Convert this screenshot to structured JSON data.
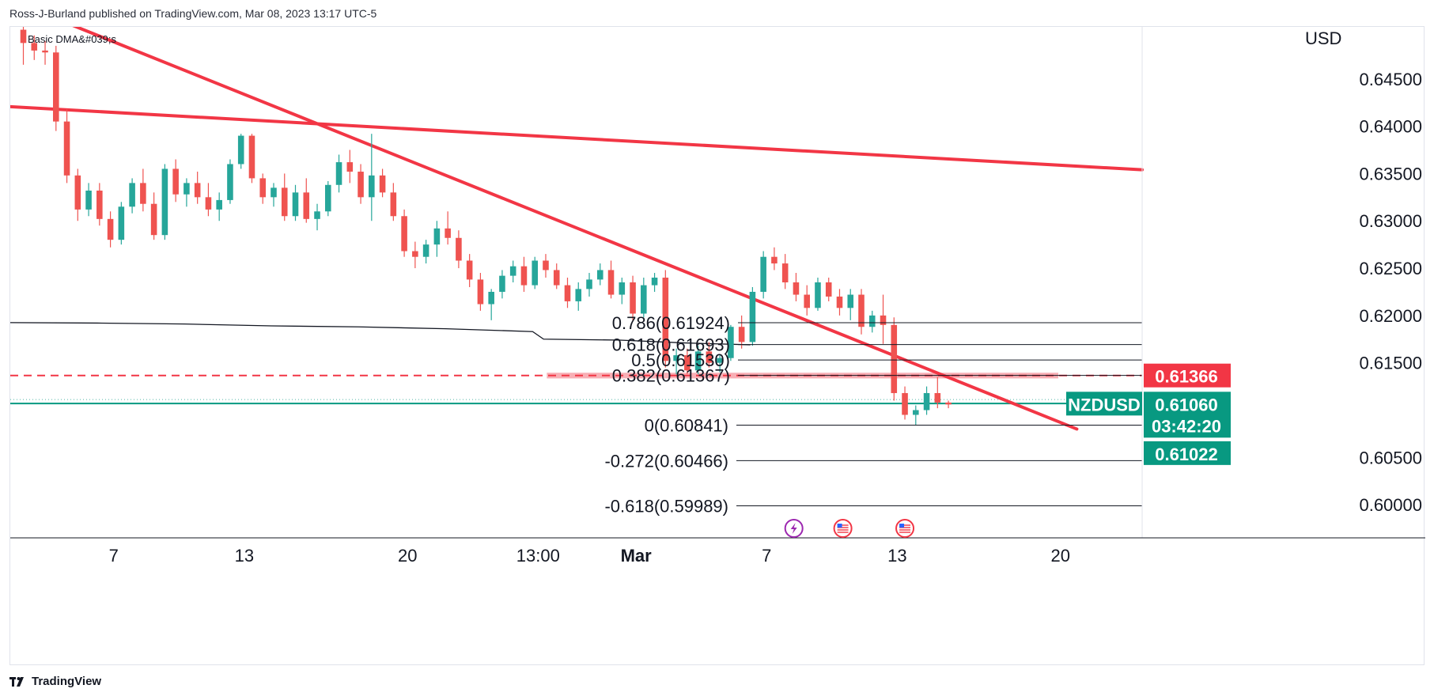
{
  "header": {
    "byline": "Ross-J-Burland published on TradingView.com, Mar 08, 2023 13:17 UTC-5"
  },
  "footer": {
    "brand": "TradingView"
  },
  "colors": {
    "up": "#26a69a",
    "down": "#ef5350",
    "trendline": "#f23645",
    "support": "#089981",
    "resistance_zone": "#f7a1a8",
    "dma": "#131722",
    "fib": "#131722",
    "last_price_badge": "#089981",
    "level_badge_red": "#f23645",
    "level_badge_green": "#089981",
    "event_purple": "#9c27b0"
  },
  "chart_data": {
    "type": "candlestick",
    "symbol": "NZDUSD",
    "title": "",
    "indicator_label": "Basic DMA&#039;s",
    "y_axis": {
      "label": "USD",
      "range": [
        0.5965,
        0.6505
      ],
      "ticks": [
        "0.64500",
        "0.64000",
        "0.63500",
        "0.63000",
        "0.62500",
        "0.62000",
        "0.61500",
        "0.60500",
        "0.60000"
      ]
    },
    "x_axis": {
      "range": [
        0,
        104
      ],
      "ticks": [
        {
          "label": "7",
          "x": 9.5
        },
        {
          "label": "13",
          "x": 21.5
        },
        {
          "label": "20",
          "x": 36.5
        },
        {
          "label": "13:00",
          "x": 48.5
        },
        {
          "label": "Mar",
          "x": 57.5
        },
        {
          "label": "7",
          "x": 69.5
        },
        {
          "label": "13",
          "x": 81.5
        },
        {
          "label": "20",
          "x": 96.5
        }
      ]
    },
    "candles": [
      [
        0.6502,
        0.6512,
        0.6465,
        0.6488
      ],
      [
        0.6488,
        0.6496,
        0.647,
        0.648
      ],
      [
        0.648,
        0.649,
        0.6465,
        0.6478
      ],
      [
        0.6478,
        0.6485,
        0.6395,
        0.6405
      ],
      [
        0.6405,
        0.6418,
        0.634,
        0.6348
      ],
      [
        0.6348,
        0.6355,
        0.63,
        0.6312
      ],
      [
        0.6312,
        0.634,
        0.6305,
        0.6332
      ],
      [
        0.6332,
        0.634,
        0.6295,
        0.6302
      ],
      [
        0.6302,
        0.631,
        0.6272,
        0.628
      ],
      [
        0.628,
        0.632,
        0.6275,
        0.6315
      ],
      [
        0.6315,
        0.6345,
        0.6308,
        0.634
      ],
      [
        0.634,
        0.6355,
        0.631,
        0.6318
      ],
      [
        0.6318,
        0.633,
        0.628,
        0.6285
      ],
      [
        0.6285,
        0.636,
        0.628,
        0.6355
      ],
      [
        0.6355,
        0.6365,
        0.632,
        0.6328
      ],
      [
        0.6328,
        0.6345,
        0.6315,
        0.634
      ],
      [
        0.634,
        0.6352,
        0.6318,
        0.6325
      ],
      [
        0.6325,
        0.634,
        0.6305,
        0.6312
      ],
      [
        0.6312,
        0.633,
        0.63,
        0.6322
      ],
      [
        0.6322,
        0.6365,
        0.6318,
        0.636
      ],
      [
        0.636,
        0.6392,
        0.6355,
        0.639
      ],
      [
        0.639,
        0.6392,
        0.634,
        0.6345
      ],
      [
        0.6345,
        0.635,
        0.6318,
        0.6325
      ],
      [
        0.6325,
        0.634,
        0.6315,
        0.6335
      ],
      [
        0.6335,
        0.635,
        0.63,
        0.6305
      ],
      [
        0.6305,
        0.6338,
        0.63,
        0.633
      ],
      [
        0.633,
        0.6345,
        0.6298,
        0.6302
      ],
      [
        0.6302,
        0.6318,
        0.629,
        0.631
      ],
      [
        0.631,
        0.6342,
        0.6305,
        0.6338
      ],
      [
        0.6338,
        0.637,
        0.633,
        0.6362
      ],
      [
        0.6362,
        0.6375,
        0.634,
        0.6352
      ],
      [
        0.6352,
        0.636,
        0.6318,
        0.6325
      ],
      [
        0.6325,
        0.6392,
        0.63,
        0.6348
      ],
      [
        0.6348,
        0.6355,
        0.6325,
        0.633
      ],
      [
        0.633,
        0.634,
        0.63,
        0.6305
      ],
      [
        0.6305,
        0.6312,
        0.6262,
        0.6268
      ],
      [
        0.6268,
        0.6278,
        0.625,
        0.6262
      ],
      [
        0.6262,
        0.628,
        0.6255,
        0.6275
      ],
      [
        0.6275,
        0.63,
        0.6262,
        0.6292
      ],
      [
        0.6292,
        0.631,
        0.6275,
        0.6282
      ],
      [
        0.6282,
        0.629,
        0.625,
        0.6258
      ],
      [
        0.6258,
        0.6265,
        0.623,
        0.6238
      ],
      [
        0.6238,
        0.6245,
        0.6205,
        0.6212
      ],
      [
        0.6212,
        0.6228,
        0.6195,
        0.6225
      ],
      [
        0.6225,
        0.6248,
        0.6218,
        0.6242
      ],
      [
        0.6242,
        0.6258,
        0.6235,
        0.6252
      ],
      [
        0.6252,
        0.6262,
        0.6225,
        0.6232
      ],
      [
        0.6232,
        0.6262,
        0.6228,
        0.6258
      ],
      [
        0.6258,
        0.6265,
        0.624,
        0.6248
      ],
      [
        0.6248,
        0.6255,
        0.6228,
        0.6232
      ],
      [
        0.6232,
        0.624,
        0.6208,
        0.6215
      ],
      [
        0.6215,
        0.6235,
        0.6205,
        0.6228
      ],
      [
        0.6228,
        0.6245,
        0.622,
        0.6238
      ],
      [
        0.6238,
        0.6255,
        0.6232,
        0.6248
      ],
      [
        0.6248,
        0.6258,
        0.6218,
        0.6222
      ],
      [
        0.6222,
        0.624,
        0.6212,
        0.6235
      ],
      [
        0.6235,
        0.6242,
        0.6195,
        0.6202
      ],
      [
        0.6202,
        0.624,
        0.6198,
        0.6232
      ],
      [
        0.6232,
        0.6245,
        0.6225,
        0.624
      ],
      [
        0.624,
        0.6248,
        0.6145,
        0.6152
      ],
      [
        0.6152,
        0.6165,
        0.6138,
        0.6158
      ],
      [
        0.6158,
        0.6165,
        0.6138,
        0.6142
      ],
      [
        0.6142,
        0.6168,
        0.6138,
        0.6162
      ],
      [
        0.6162,
        0.6172,
        0.6145,
        0.615
      ],
      [
        0.615,
        0.6158,
        0.614,
        0.6155
      ],
      [
        0.6155,
        0.619,
        0.6152,
        0.6188
      ],
      [
        0.6188,
        0.62,
        0.6165,
        0.6172
      ],
      [
        0.6172,
        0.623,
        0.6168,
        0.6225
      ],
      [
        0.6225,
        0.6268,
        0.6218,
        0.6262
      ],
      [
        0.6262,
        0.6272,
        0.6248,
        0.6255
      ],
      [
        0.6255,
        0.6265,
        0.6228,
        0.6235
      ],
      [
        0.6235,
        0.6245,
        0.6215,
        0.6222
      ],
      [
        0.6222,
        0.6232,
        0.62,
        0.6208
      ],
      [
        0.6208,
        0.624,
        0.6205,
        0.6235
      ],
      [
        0.6235,
        0.624,
        0.6215,
        0.622
      ],
      [
        0.622,
        0.6228,
        0.62,
        0.6208
      ],
      [
        0.6208,
        0.6228,
        0.6195,
        0.6222
      ],
      [
        0.6222,
        0.6228,
        0.618,
        0.6188
      ],
      [
        0.6188,
        0.6205,
        0.6182,
        0.62
      ],
      [
        0.62,
        0.6222,
        0.617,
        0.619
      ],
      [
        0.619,
        0.6198,
        0.611,
        0.6118
      ],
      [
        0.6118,
        0.6125,
        0.609,
        0.6095
      ],
      [
        0.6095,
        0.6105,
        0.6084,
        0.61
      ],
      [
        0.61,
        0.6125,
        0.6095,
        0.6118
      ],
      [
        0.6118,
        0.6135,
        0.6102,
        0.6108
      ],
      [
        0.6108,
        0.611,
        0.6102,
        0.6106
      ]
    ],
    "moving_average": {
      "label": "Basic DMA&#039;s",
      "points": [
        [
          0,
          0.61925
        ],
        [
          8,
          0.6192
        ],
        [
          16,
          0.6191
        ],
        [
          24,
          0.6189
        ],
        [
          32,
          0.6188
        ],
        [
          40,
          0.6186
        ],
        [
          48,
          0.6183
        ],
        [
          49,
          0.6175
        ],
        [
          56,
          0.6174
        ],
        [
          62,
          0.6171
        ],
        [
          68,
          0.6169
        ]
      ]
    },
    "trendlines": [
      {
        "from": [
          -2,
          0.6422
        ],
        "to": [
          104,
          0.6354
        ]
      },
      {
        "from": [
          5,
          0.651
        ],
        "to": [
          98,
          0.608
        ]
      }
    ],
    "horizontal_lines": [
      {
        "type": "support",
        "y": 0.6107
      },
      {
        "type": "resistance-dashed",
        "y": 0.61366
      }
    ],
    "resistance_zone": {
      "x": [
        49.3,
        96.3
      ],
      "y": [
        0.61335,
        0.61395
      ]
    },
    "fibonacci": {
      "x_start": 56,
      "x_end": 104,
      "levels": [
        {
          "label": "0.786(0.61924)",
          "value": 0.61924
        },
        {
          "label": "0.618(0.61693)",
          "value": 0.61693
        },
        {
          "label": "0.5(0.61530)",
          "value": 0.6153
        },
        {
          "label": "0.382(0.61367)",
          "value": 0.61367
        },
        {
          "label": "0(0.60841)",
          "value": 0.60841
        },
        {
          "label": "-0.272(0.60466)",
          "value": 0.60466
        },
        {
          "label": "-0.618(0.59989)",
          "value": 0.59989
        }
      ]
    },
    "price_badges": [
      {
        "text": "0.61366",
        "value": 0.61366,
        "color": "#f23645"
      },
      {
        "text": "0.61060",
        "value": 0.6106,
        "color": "#089981",
        "countdown": "03:42:20",
        "symbol_tag": "NZDUSD"
      },
      {
        "text": "0.61022",
        "value": 0.61022,
        "color": "#089981"
      }
    ],
    "events": [
      {
        "icon": "lightning-event-icon",
        "x": 72.0
      },
      {
        "icon": "us-flag-event-icon",
        "x": 76.5
      },
      {
        "icon": "us-flag-event-icon",
        "x": 82.2
      }
    ]
  }
}
